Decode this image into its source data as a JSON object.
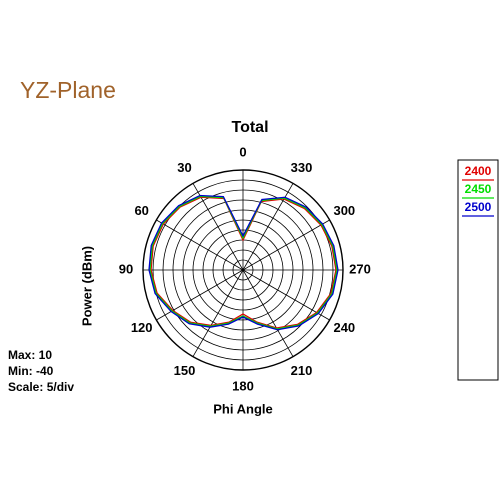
{
  "chart_data": {
    "type": "polar",
    "heading": "YZ-Plane",
    "title": "Total",
    "rlabel": "Power  (dBm)",
    "thetalabel": "Phi Angle",
    "max_label": "Max: 10",
    "min_label": "Min: -40",
    "scale_label": "Scale: 5/div",
    "rlim": [
      -40,
      10
    ],
    "rticks": [
      -40,
      -35,
      -30,
      -25,
      -20,
      -15,
      -10,
      -5,
      0,
      5,
      10
    ],
    "thetaticks": [
      0,
      30,
      60,
      90,
      120,
      150,
      180,
      210,
      240,
      270,
      300,
      330
    ],
    "theta": [
      0,
      15,
      30,
      45,
      60,
      75,
      90,
      105,
      120,
      135,
      150,
      165,
      180,
      195,
      210,
      225,
      240,
      255,
      270,
      285,
      300,
      315,
      330,
      345
    ],
    "series": [
      {
        "name": "2400",
        "color": "#e00000",
        "values": [
          -25,
          -3,
          2,
          4.5,
          6,
          6.5,
          6,
          4.5,
          0.5,
          -3,
          -8,
          -13,
          -18,
          -13,
          -6.5,
          -1.5,
          2.5,
          5.5,
          6.5,
          6,
          5,
          3.5,
          1,
          -4.5
        ]
      },
      {
        "name": "2450",
        "color": "#00dd00",
        "values": [
          -24,
          -2.5,
          2.5,
          5,
          6.5,
          7,
          6.5,
          5,
          1,
          -2.5,
          -7.5,
          -12.5,
          -17,
          -12.5,
          -6,
          -1,
          3,
          6,
          7,
          6.5,
          5.5,
          4,
          1.5,
          -4
        ]
      },
      {
        "name": "2500",
        "color": "#0000cc",
        "values": [
          -23,
          -2,
          3,
          5.5,
          7,
          7.5,
          7,
          5.5,
          1.5,
          -2,
          -7,
          -12,
          -16.5,
          -12,
          -5.5,
          -0.5,
          3.5,
          6.5,
          7.5,
          7,
          6,
          4.5,
          2,
          -3.5
        ]
      }
    ]
  }
}
